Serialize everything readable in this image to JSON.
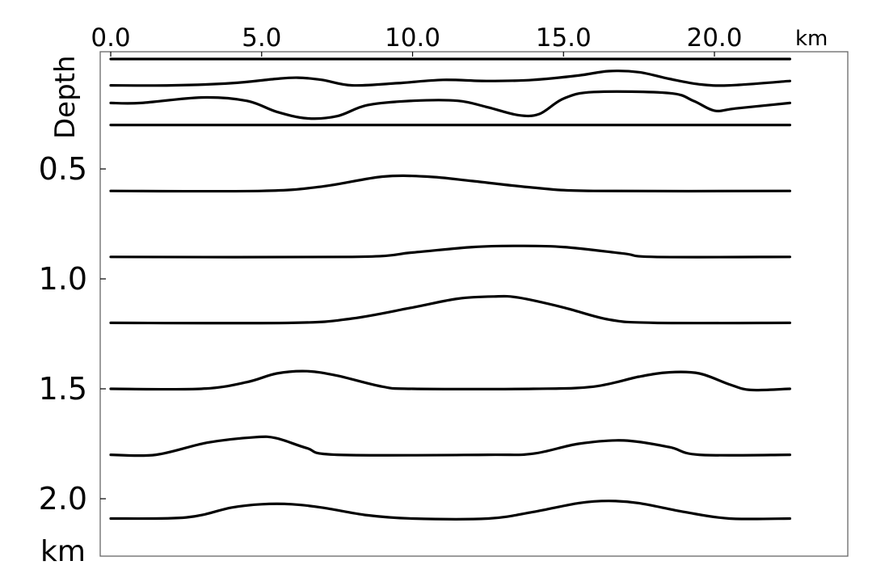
{
  "chart_data": {
    "type": "line",
    "title": "",
    "xlabel": "",
    "x_unit": "km",
    "ylabel": "Depth",
    "y_unit": "km",
    "x_axis_position": "top",
    "y_inverted": true,
    "xlim": [
      0,
      22.5
    ],
    "ylim": [
      0,
      2.27
    ],
    "grid": false,
    "legend": "none",
    "x_ticks": [
      {
        "value": 0,
        "label": "0.0"
      },
      {
        "value": 5,
        "label": "5.0"
      },
      {
        "value": 10,
        "label": "10.0"
      },
      {
        "value": 15,
        "label": "15.0"
      },
      {
        "value": 20,
        "label": "20.0"
      }
    ],
    "y_ticks": [
      {
        "value": 0.5,
        "label": "0.5"
      },
      {
        "value": 1.0,
        "label": "1.0"
      },
      {
        "value": 1.5,
        "label": "1.5"
      },
      {
        "value": 2.0,
        "label": "2.0"
      }
    ],
    "series": [
      {
        "points": [
          [
            0,
            0.0
          ],
          [
            22.5,
            0.0
          ]
        ]
      },
      {
        "points": [
          [
            0,
            0.12
          ],
          [
            2,
            0.12
          ],
          [
            4,
            0.11
          ],
          [
            5.5,
            0.09
          ],
          [
            6.2,
            0.085
          ],
          [
            7,
            0.095
          ],
          [
            8,
            0.12
          ],
          [
            9.5,
            0.11
          ],
          [
            11,
            0.095
          ],
          [
            12.5,
            0.1
          ],
          [
            14,
            0.095
          ],
          [
            15.5,
            0.075
          ],
          [
            16.5,
            0.055
          ],
          [
            17.5,
            0.06
          ],
          [
            18.5,
            0.09
          ],
          [
            19.5,
            0.115
          ],
          [
            20.5,
            0.12
          ],
          [
            22.5,
            0.1
          ]
        ]
      },
      {
        "points": [
          [
            0,
            0.2
          ],
          [
            1,
            0.2
          ],
          [
            3,
            0.175
          ],
          [
            4.5,
            0.19
          ],
          [
            5.5,
            0.24
          ],
          [
            6.5,
            0.27
          ],
          [
            7.5,
            0.26
          ],
          [
            8.5,
            0.21
          ],
          [
            10,
            0.19
          ],
          [
            11.5,
            0.19
          ],
          [
            12.5,
            0.22
          ],
          [
            13.5,
            0.255
          ],
          [
            14.2,
            0.25
          ],
          [
            15,
            0.18
          ],
          [
            16,
            0.15
          ],
          [
            18.5,
            0.155
          ],
          [
            19.3,
            0.19
          ],
          [
            20,
            0.235
          ],
          [
            20.7,
            0.225
          ],
          [
            22.5,
            0.2
          ]
        ]
      },
      {
        "points": [
          [
            0,
            0.3
          ],
          [
            22.5,
            0.3
          ]
        ]
      },
      {
        "points": [
          [
            0,
            0.6
          ],
          [
            5,
            0.6
          ],
          [
            7,
            0.58
          ],
          [
            9,
            0.535
          ],
          [
            10.5,
            0.535
          ],
          [
            12,
            0.555
          ],
          [
            14,
            0.585
          ],
          [
            16,
            0.6
          ],
          [
            22.5,
            0.6
          ]
        ]
      },
      {
        "points": [
          [
            0,
            0.9
          ],
          [
            8,
            0.9
          ],
          [
            10,
            0.88
          ],
          [
            12,
            0.855
          ],
          [
            13.5,
            0.85
          ],
          [
            15,
            0.855
          ],
          [
            17,
            0.885
          ],
          [
            18,
            0.9
          ],
          [
            22.5,
            0.9
          ]
        ]
      },
      {
        "points": [
          [
            0,
            1.2
          ],
          [
            6,
            1.2
          ],
          [
            8,
            1.18
          ],
          [
            10,
            1.13
          ],
          [
            11.5,
            1.09
          ],
          [
            12.7,
            1.08
          ],
          [
            13.5,
            1.085
          ],
          [
            15,
            1.13
          ],
          [
            16.5,
            1.185
          ],
          [
            18,
            1.2
          ],
          [
            22.5,
            1.2
          ]
        ]
      },
      {
        "points": [
          [
            0,
            1.5
          ],
          [
            3,
            1.5
          ],
          [
            4.5,
            1.47
          ],
          [
            5.5,
            1.43
          ],
          [
            6.5,
            1.42
          ],
          [
            7.5,
            1.44
          ],
          [
            9,
            1.49
          ],
          [
            10,
            1.5
          ],
          [
            14,
            1.5
          ],
          [
            16,
            1.49
          ],
          [
            17.5,
            1.445
          ],
          [
            18.5,
            1.425
          ],
          [
            19.5,
            1.43
          ],
          [
            20.5,
            1.48
          ],
          [
            21.2,
            1.505
          ],
          [
            22.5,
            1.5
          ]
        ]
      },
      {
        "points": [
          [
            0,
            1.8
          ],
          [
            1.5,
            1.8
          ],
          [
            3.2,
            1.745
          ],
          [
            4.8,
            1.72
          ],
          [
            5.5,
            1.725
          ],
          [
            6.5,
            1.77
          ],
          [
            7.5,
            1.8
          ],
          [
            12.5,
            1.8
          ],
          [
            14,
            1.795
          ],
          [
            15.5,
            1.75
          ],
          [
            17,
            1.735
          ],
          [
            18.5,
            1.765
          ],
          [
            19.5,
            1.8
          ],
          [
            22.5,
            1.8
          ]
        ]
      },
      {
        "points": [
          [
            0,
            2.09
          ],
          [
            2.5,
            2.085
          ],
          [
            4,
            2.04
          ],
          [
            5,
            2.025
          ],
          [
            6,
            2.025
          ],
          [
            7,
            2.04
          ],
          [
            8.5,
            2.075
          ],
          [
            10,
            2.09
          ],
          [
            12.5,
            2.09
          ],
          [
            14,
            2.06
          ],
          [
            15.5,
            2.02
          ],
          [
            16.5,
            2.01
          ],
          [
            17.5,
            2.02
          ],
          [
            19,
            2.06
          ],
          [
            20.5,
            2.09
          ],
          [
            22.5,
            2.09
          ]
        ]
      }
    ]
  }
}
